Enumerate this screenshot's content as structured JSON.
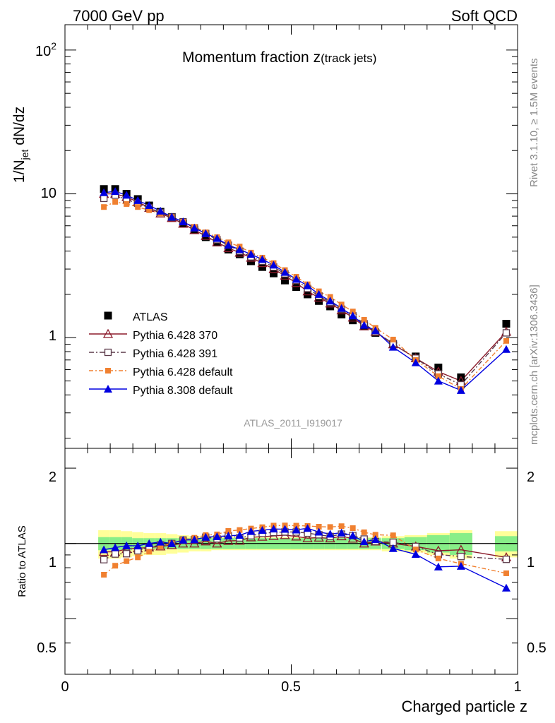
{
  "header": {
    "left": "7000 GeV pp",
    "right": "Soft QCD"
  },
  "side": {
    "rivet": "Rivet 3.1.10, ≥ 1.5M events",
    "mcplots": "mcplots.cern.ch [arXiv:1306.3436]"
  },
  "chart_data": {
    "type": "scatter",
    "title": "Momentum fraction z",
    "title_sub": "(track jets)",
    "watermark": "ATLAS_2011_I919017",
    "xlabel": "Charged particle z",
    "ylabel_main": "1/N",
    "ylabel_sub": "jet",
    "ylabel_tail": " dN/dz",
    "ratio_ylabel": "Ratio to ATLAS",
    "xlim": [
      0,
      1
    ],
    "main_ylim": [
      0.17,
      150
    ],
    "main_log": true,
    "ratio_ylim": [
      0.3,
      2.4
    ],
    "ratio_log": true,
    "x_tick_labels": [
      "0",
      "0.5",
      "1"
    ],
    "main_tick_labels": {
      "hundred_base": "10",
      "hundred_exp": "2",
      "ten": "10",
      "one": "1"
    },
    "ratio_tick_labels": {
      "two": "2",
      "one": "1",
      "half": "0.5"
    },
    "legend_position": "middle-left",
    "x": [
      0.086,
      0.111,
      0.136,
      0.161,
      0.186,
      0.211,
      0.236,
      0.261,
      0.286,
      0.311,
      0.336,
      0.361,
      0.386,
      0.411,
      0.436,
      0.461,
      0.486,
      0.511,
      0.536,
      0.561,
      0.586,
      0.611,
      0.636,
      0.661,
      0.686,
      0.725,
      0.775,
      0.825,
      0.875,
      0.975
    ],
    "x_bin_width": [
      0.025,
      0.025,
      0.025,
      0.025,
      0.025,
      0.025,
      0.025,
      0.025,
      0.025,
      0.025,
      0.025,
      0.025,
      0.025,
      0.025,
      0.025,
      0.025,
      0.025,
      0.025,
      0.025,
      0.025,
      0.025,
      0.025,
      0.025,
      0.025,
      0.025,
      0.05,
      0.05,
      0.05,
      0.05,
      0.05
    ],
    "data_band_stat": [
      0.06,
      0.06,
      0.06,
      0.05,
      0.05,
      0.05,
      0.05,
      0.05,
      0.05,
      0.05,
      0.05,
      0.05,
      0.05,
      0.05,
      0.05,
      0.05,
      0.05,
      0.05,
      0.05,
      0.05,
      0.05,
      0.05,
      0.05,
      0.05,
      0.05,
      0.05,
      0.06,
      0.08,
      0.1,
      0.07
    ],
    "data_band_total": [
      0.13,
      0.13,
      0.12,
      0.11,
      0.1,
      0.1,
      0.09,
      0.08,
      0.07,
      0.07,
      0.06,
      0.06,
      0.06,
      0.06,
      0.06,
      0.06,
      0.06,
      0.06,
      0.06,
      0.06,
      0.06,
      0.06,
      0.06,
      0.06,
      0.06,
      0.07,
      0.08,
      0.1,
      0.13,
      0.12
    ],
    "series": [
      {
        "name": "ATLAS",
        "color": "#000000",
        "marker": "square-filled",
        "values": [
          10.8,
          10.8,
          10.0,
          9.2,
          8.3,
          7.5,
          6.9,
          6.2,
          5.6,
          5.0,
          4.6,
          4.1,
          3.8,
          3.4,
          3.1,
          2.8,
          2.5,
          2.25,
          2.0,
          1.8,
          1.65,
          1.45,
          1.32,
          1.2,
          1.08,
          0.9,
          0.74,
          0.62,
          0.53,
          1.25
        ]
      },
      {
        "name": "Pythia 6.428 370",
        "color": "#8b1a2a",
        "marker": "triangle-open",
        "dash": "",
        "values": [
          10.0,
          10.0,
          9.5,
          8.8,
          8.0,
          7.3,
          6.8,
          6.2,
          5.6,
          5.1,
          4.6,
          4.2,
          3.9,
          3.6,
          3.3,
          3.0,
          2.7,
          2.4,
          2.1,
          1.9,
          1.73,
          1.55,
          1.38,
          1.2,
          1.1,
          0.9,
          0.72,
          0.58,
          0.5,
          1.1
        ]
      },
      {
        "name": "Pythia 6.428 391",
        "color": "#5c3a4a",
        "marker": "square-open",
        "dash": "7,3,2,3",
        "values": [
          9.3,
          9.8,
          9.1,
          8.6,
          8.0,
          7.4,
          6.9,
          6.4,
          5.8,
          5.3,
          4.8,
          4.4,
          4.0,
          3.65,
          3.4,
          3.1,
          2.78,
          2.5,
          2.2,
          1.95,
          1.76,
          1.58,
          1.42,
          1.25,
          1.1,
          0.91,
          0.72,
          0.56,
          0.47,
          1.08
        ]
      },
      {
        "name": "Pythia 6.428 default",
        "color": "#f08030",
        "marker": "square-filled-small",
        "dash": "6,3,2,3",
        "values": [
          8.1,
          8.8,
          8.5,
          8.1,
          7.7,
          7.3,
          6.9,
          6.4,
          5.9,
          5.4,
          5.0,
          4.6,
          4.3,
          3.9,
          3.6,
          3.3,
          2.95,
          2.65,
          2.35,
          2.1,
          1.92,
          1.7,
          1.52,
          1.33,
          1.17,
          0.97,
          0.7,
          0.54,
          0.44,
          0.95
        ]
      },
      {
        "name": "Pythia 8.308 default",
        "color": "#0000e0",
        "marker": "triangle-filled",
        "dash": "",
        "values": [
          10.2,
          10.4,
          9.8,
          9.0,
          8.3,
          7.6,
          6.9,
          6.4,
          5.8,
          5.3,
          4.9,
          4.4,
          4.1,
          3.8,
          3.5,
          3.2,
          2.85,
          2.55,
          2.3,
          2.0,
          1.8,
          1.6,
          1.42,
          1.22,
          1.12,
          0.86,
          0.67,
          0.5,
          0.43,
          0.83
        ]
      }
    ]
  }
}
